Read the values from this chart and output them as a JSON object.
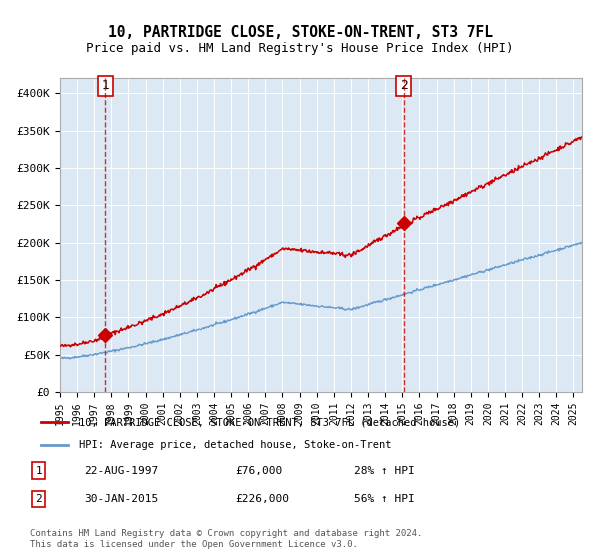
{
  "title": "10, PARTRIDGE CLOSE, STOKE-ON-TRENT, ST3 7FL",
  "subtitle": "Price paid vs. HM Land Registry's House Price Index (HPI)",
  "bg_color": "#dce9f5",
  "plot_bg_color": "#dce9f5",
  "red_line_color": "#cc0000",
  "blue_line_color": "#6699cc",
  "sale1_date": 1997.645,
  "sale1_price": 76000,
  "sale2_date": 2015.08,
  "sale2_price": 226000,
  "ylim": [
    0,
    420000
  ],
  "xlim": [
    1995,
    2025.5
  ],
  "yticks": [
    0,
    50000,
    100000,
    150000,
    200000,
    250000,
    300000,
    350000,
    400000
  ],
  "ytick_labels": [
    "£0",
    "£50K",
    "£100K",
    "£150K",
    "£200K",
    "£250K",
    "£300K",
    "£350K",
    "£400K"
  ],
  "xticks": [
    1995,
    1996,
    1997,
    1998,
    1999,
    2000,
    2001,
    2002,
    2003,
    2004,
    2005,
    2006,
    2007,
    2008,
    2009,
    2010,
    2011,
    2012,
    2013,
    2014,
    2015,
    2016,
    2017,
    2018,
    2019,
    2020,
    2021,
    2022,
    2023,
    2024,
    2025
  ],
  "legend_red_label": "10, PARTRIDGE CLOSE, STOKE-ON-TRENT, ST3 7FL (detached house)",
  "legend_blue_label": "HPI: Average price, detached house, Stoke-on-Trent",
  "note1_num": "1",
  "note1_date": "22-AUG-1997",
  "note1_price": "£76,000",
  "note1_hpi": "28% ↑ HPI",
  "note2_num": "2",
  "note2_date": "30-JAN-2015",
  "note2_price": "£226,000",
  "note2_hpi": "56% ↑ HPI",
  "footer": "Contains HM Land Registry data © Crown copyright and database right 2024.\nThis data is licensed under the Open Government Licence v3.0."
}
